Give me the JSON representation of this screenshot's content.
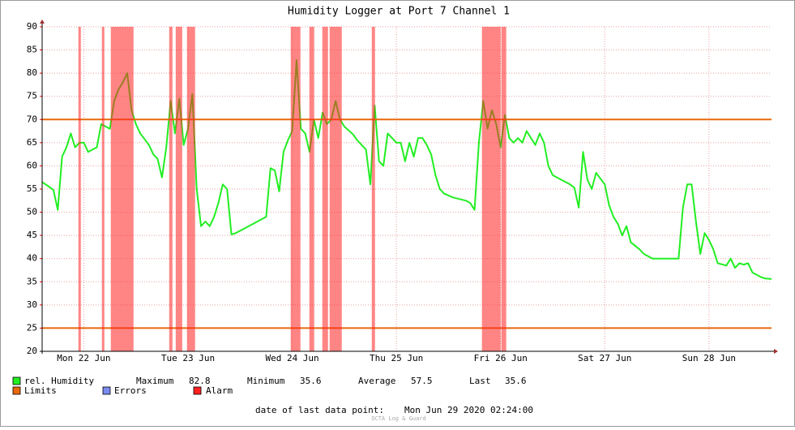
{
  "chart_data": {
    "type": "line",
    "title": "Humidity Logger at Port 7 Channel 1",
    "xlim": [
      "2020-06-22T02:24",
      "2020-06-29T02:24"
    ],
    "xticks": [
      {
        "value": "2020-06-22T12:00",
        "label": "Mon 22 Jun"
      },
      {
        "value": "2020-06-23T12:00",
        "label": "Tue 23 Jun"
      },
      {
        "value": "2020-06-24T12:00",
        "label": "Wed 24 Jun"
      },
      {
        "value": "2020-06-25T12:00",
        "label": "Thu 25 Jun"
      },
      {
        "value": "2020-06-26T12:00",
        "label": "Fri 26 Jun"
      },
      {
        "value": "2020-06-27T12:00",
        "label": "Sat 27 Jun"
      },
      {
        "value": "2020-06-28T12:00",
        "label": "Sun 28 Jun"
      }
    ],
    "ylim": [
      20,
      90
    ],
    "yticks": [
      20,
      25,
      30,
      35,
      40,
      45,
      50,
      55,
      60,
      65,
      70,
      75,
      80,
      85,
      90
    ],
    "grid": true,
    "series": [
      {
        "name": "rel. Humidity",
        "color": "#22ee22",
        "x": [
          "2020-06-22T02:24",
          "2020-06-22T04:00",
          "2020-06-22T05:00",
          "2020-06-22T06:00",
          "2020-06-22T07:00",
          "2020-06-22T08:00",
          "2020-06-22T09:00",
          "2020-06-22T10:00",
          "2020-06-22T11:00",
          "2020-06-22T12:00",
          "2020-06-22T13:00",
          "2020-06-22T14:00",
          "2020-06-22T15:00",
          "2020-06-22T16:00",
          "2020-06-22T17:00",
          "2020-06-22T18:00",
          "2020-06-22T19:00",
          "2020-06-22T20:00",
          "2020-06-22T21:00",
          "2020-06-22T22:00",
          "2020-06-22T23:00",
          "2020-06-23T00:00",
          "2020-06-23T01:00",
          "2020-06-23T03:00",
          "2020-06-23T04:00",
          "2020-06-23T05:00",
          "2020-06-23T06:00",
          "2020-06-23T07:00",
          "2020-06-23T08:00",
          "2020-06-23T09:00",
          "2020-06-23T10:00",
          "2020-06-23T11:00",
          "2020-06-23T12:00",
          "2020-06-23T13:00",
          "2020-06-23T14:00",
          "2020-06-23T15:00",
          "2020-06-23T16:00",
          "2020-06-23T17:00",
          "2020-06-23T18:00",
          "2020-06-23T19:00",
          "2020-06-23T20:00",
          "2020-06-23T21:00",
          "2020-06-23T22:00",
          "2020-06-23T23:00",
          "2020-06-24T01:00",
          "2020-06-24T03:00",
          "2020-06-24T05:00",
          "2020-06-24T06:00",
          "2020-06-24T07:00",
          "2020-06-24T08:00",
          "2020-06-24T09:00",
          "2020-06-24T10:00",
          "2020-06-24T11:00",
          "2020-06-24T12:00",
          "2020-06-24T13:00",
          "2020-06-24T14:00",
          "2020-06-24T15:00",
          "2020-06-24T16:00",
          "2020-06-24T17:00",
          "2020-06-24T18:00",
          "2020-06-24T19:00",
          "2020-06-24T20:00",
          "2020-06-24T21:00",
          "2020-06-24T22:00",
          "2020-06-24T23:00",
          "2020-06-25T00:00",
          "2020-06-25T02:00",
          "2020-06-25T03:00",
          "2020-06-25T05:00",
          "2020-06-25T06:00",
          "2020-06-25T07:00",
          "2020-06-25T08:00",
          "2020-06-25T09:00",
          "2020-06-25T10:00",
          "2020-06-25T11:00",
          "2020-06-25T12:00",
          "2020-06-25T13:00",
          "2020-06-25T14:00",
          "2020-06-25T15:00",
          "2020-06-25T16:00",
          "2020-06-25T17:00",
          "2020-06-25T18:00",
          "2020-06-25T19:00",
          "2020-06-25T20:00",
          "2020-06-25T21:00",
          "2020-06-25T22:00",
          "2020-06-25T23:00",
          "2020-06-26T01:00",
          "2020-06-26T04:00",
          "2020-06-26T05:00",
          "2020-06-26T06:00",
          "2020-06-26T07:00",
          "2020-06-26T08:00",
          "2020-06-26T09:00",
          "2020-06-26T10:00",
          "2020-06-26T11:00",
          "2020-06-26T12:00",
          "2020-06-26T13:00",
          "2020-06-26T14:00",
          "2020-06-26T15:00",
          "2020-06-26T16:00",
          "2020-06-26T17:00",
          "2020-06-26T18:00",
          "2020-06-26T19:00",
          "2020-06-26T20:00",
          "2020-06-26T21:00",
          "2020-06-26T22:00",
          "2020-06-26T23:00",
          "2020-06-27T00:00",
          "2020-06-27T02:00",
          "2020-06-27T04:00",
          "2020-06-27T05:00",
          "2020-06-27T06:00",
          "2020-06-27T07:00",
          "2020-06-27T08:00",
          "2020-06-27T09:00",
          "2020-06-27T10:00",
          "2020-06-27T12:00",
          "2020-06-27T13:00",
          "2020-06-27T14:00",
          "2020-06-27T15:00",
          "2020-06-27T16:00",
          "2020-06-27T17:00",
          "2020-06-27T18:00",
          "2020-06-27T20:00",
          "2020-06-27T21:00",
          "2020-06-27T23:00",
          "2020-06-28T02:00",
          "2020-06-28T05:00",
          "2020-06-28T06:00",
          "2020-06-28T07:00",
          "2020-06-28T08:00",
          "2020-06-28T09:00",
          "2020-06-28T10:00",
          "2020-06-28T11:00",
          "2020-06-28T12:00",
          "2020-06-28T13:00",
          "2020-06-28T14:00",
          "2020-06-28T16:00",
          "2020-06-28T17:00",
          "2020-06-28T18:00",
          "2020-06-28T19:00",
          "2020-06-28T20:00",
          "2020-06-28T21:00",
          "2020-06-28T22:00",
          "2020-06-29T00:00",
          "2020-06-29T01:00",
          "2020-06-29T02:24"
        ],
        "values": [
          56.5,
          55.5,
          54.8,
          50.5,
          62,
          64,
          67,
          64,
          65,
          65,
          63,
          63.5,
          64,
          69,
          68.5,
          68,
          74,
          76.5,
          78,
          80,
          72,
          69,
          67,
          64.5,
          62.5,
          61.5,
          57.5,
          64,
          74,
          67,
          74.5,
          64.5,
          68,
          75.5,
          55,
          47,
          48,
          47,
          49,
          52,
          56,
          55,
          45.2,
          45.5,
          46.5,
          47.5,
          48.5,
          49,
          59.5,
          59,
          54.5,
          63,
          65.5,
          67.5,
          82.8,
          68,
          67,
          63,
          70,
          66,
          71.5,
          69,
          70,
          74,
          70,
          68.5,
          66.8,
          65.5,
          63.5,
          56,
          73,
          61,
          60,
          67,
          66,
          65,
          65,
          61,
          65,
          62,
          66,
          66,
          64.5,
          62.5,
          58,
          55,
          54,
          53.2,
          52.5,
          52,
          50.5,
          65,
          74,
          68,
          72,
          69,
          64,
          71,
          66,
          65,
          66,
          65,
          67.5,
          66,
          64.5,
          67,
          65,
          60,
          58,
          57,
          56,
          55.3,
          51,
          63,
          57,
          55,
          58.5,
          56,
          51.5,
          49,
          47.5,
          45,
          47,
          43.5,
          42,
          41,
          40,
          40,
          40,
          51,
          56,
          56,
          48,
          41,
          45.5,
          44,
          42,
          39,
          38.5,
          40,
          38,
          39,
          38.7,
          39,
          37,
          36,
          35.7,
          35.6
        ]
      }
    ],
    "limits": {
      "name": "Limits",
      "color": "#e8690c",
      "values": [
        25,
        70
      ]
    },
    "errors": {
      "name": "Errors",
      "color": "#7a8cf0"
    },
    "alarm": {
      "name": "Alarm",
      "color": "#ff2020",
      "periods": [
        [
          "2020-06-22T10:45",
          "2020-06-22T11:19"
        ],
        [
          "2020-06-22T16:10",
          "2020-06-22T16:44"
        ],
        [
          "2020-06-22T18:13",
          "2020-06-22T23:27"
        ],
        [
          "2020-06-23T07:40",
          "2020-06-23T08:25"
        ],
        [
          "2020-06-23T09:10",
          "2020-06-23T10:40"
        ],
        [
          "2020-06-23T11:46",
          "2020-06-23T13:38"
        ],
        [
          "2020-06-24T11:40",
          "2020-06-24T13:54"
        ],
        [
          "2020-06-24T15:57",
          "2020-06-24T17:04"
        ],
        [
          "2020-06-24T18:56",
          "2020-06-24T20:15"
        ],
        [
          "2020-06-24T20:37",
          "2020-06-24T23:25"
        ],
        [
          "2020-06-25T06:20",
          "2020-06-25T07:04"
        ],
        [
          "2020-06-26T07:42",
          "2020-06-26T12:00"
        ],
        [
          "2020-06-26T12:11",
          "2020-06-26T13:18"
        ]
      ]
    },
    "stats": [
      {
        "label": "Maximum",
        "value": 82.8
      },
      {
        "label": "Minimum",
        "value": 35.6
      },
      {
        "label": "Average",
        "value": 57.5
      },
      {
        "label": "Last",
        "value": 35.6
      }
    ],
    "footer": {
      "label": "date of last data point:",
      "value": "Mon Jun 29 2020 02:24:00"
    },
    "watermark": "OCTA Log & Guard"
  }
}
